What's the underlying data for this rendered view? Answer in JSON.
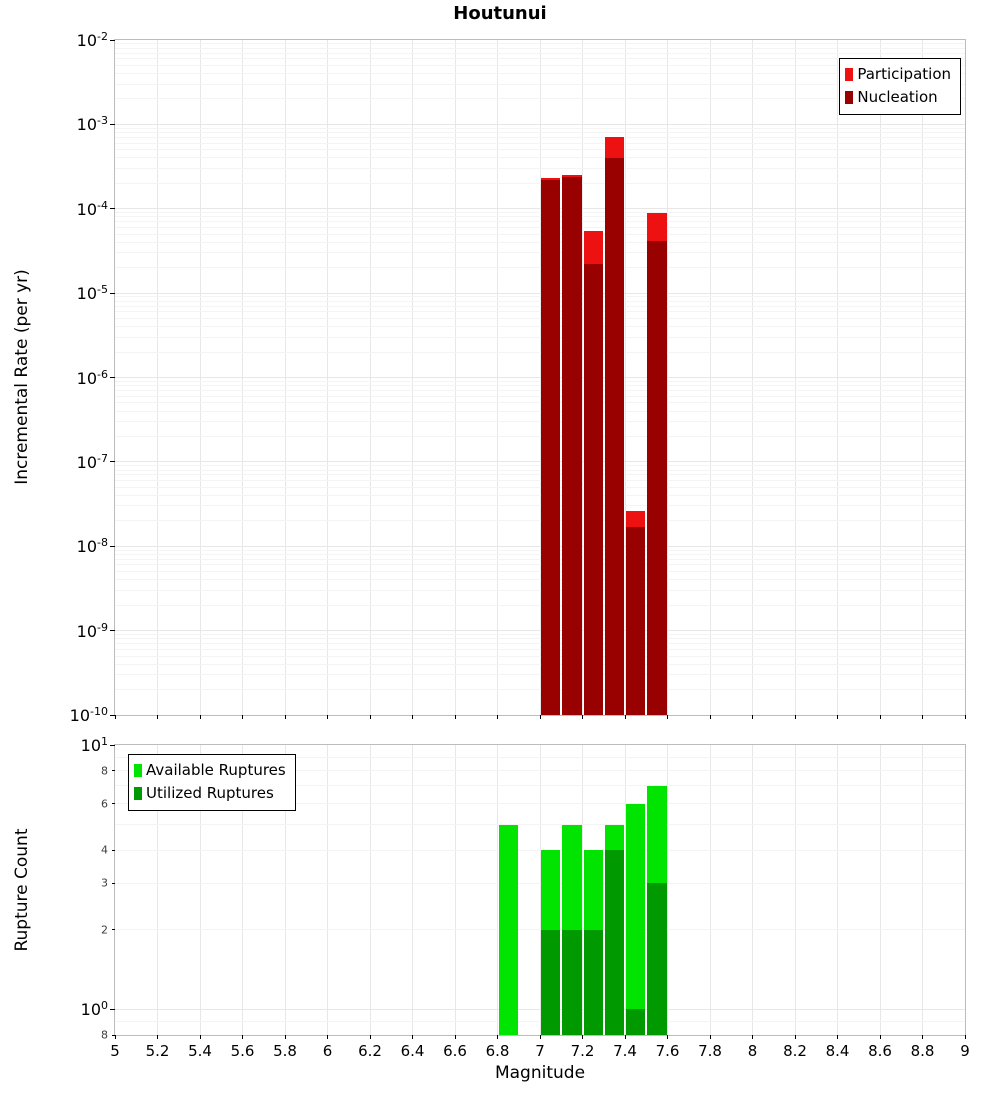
{
  "title": "Houtunui",
  "colors": {
    "participation": "#ee1111",
    "nucleation": "#990000",
    "available": "#00e400",
    "utilized": "#009900"
  },
  "x_axis": {
    "label": "Magnitude",
    "min": 5,
    "max": 9,
    "ticks": [
      "5",
      "5.2",
      "5.4",
      "5.6",
      "5.8",
      "6",
      "6.2",
      "6.4",
      "6.6",
      "6.8",
      "7",
      "7.2",
      "7.4",
      "7.6",
      "7.8",
      "8",
      "8.2",
      "8.4",
      "8.6",
      "8.8",
      "9"
    ]
  },
  "chart_data": [
    {
      "type": "bar",
      "title": "Houtunui",
      "ylabel": "Incremental Rate (per yr)",
      "xlabel": "Magnitude",
      "xlim": [
        5,
        9
      ],
      "yscale": "log",
      "ylim": [
        1e-10,
        0.01
      ],
      "y_tick_exponents": [
        -2,
        -3,
        -4,
        -5,
        -6,
        -7,
        -8,
        -9,
        -10
      ],
      "bin_width": 0.1,
      "grid": true,
      "legend_position": "top-right",
      "series": [
        {
          "name": "Participation",
          "color_key": "participation",
          "x": [
            7.05,
            7.15,
            7.25,
            7.35,
            7.45,
            7.55
          ],
          "values": [
            0.00023,
            0.00025,
            5.5e-05,
            0.0007,
            2.6e-08,
            8.8e-05
          ]
        },
        {
          "name": "Nucleation",
          "color_key": "nucleation",
          "x": [
            7.05,
            7.15,
            7.25,
            7.35,
            7.45,
            7.55
          ],
          "values": [
            0.00022,
            0.00024,
            2.2e-05,
            0.0004,
            1.7e-08,
            4.2e-05
          ]
        }
      ]
    },
    {
      "type": "bar",
      "ylabel": "Rupture Count",
      "xlabel": "Magnitude",
      "xlim": [
        5,
        9
      ],
      "yscale": "log",
      "ylim": [
        0.8,
        10
      ],
      "y_ticks": [
        {
          "v": 10,
          "exp": 1,
          "major": true
        },
        {
          "v": 8,
          "label": "8"
        },
        {
          "v": 6,
          "label": "6"
        },
        {
          "v": 4,
          "label": "4"
        },
        {
          "v": 3,
          "label": "3"
        },
        {
          "v": 2,
          "label": "2"
        },
        {
          "v": 1,
          "exp": 0,
          "major": true
        },
        {
          "v": 0.8,
          "label": "8"
        }
      ],
      "bin_width": 0.1,
      "grid": true,
      "legend_position": "top-left",
      "series": [
        {
          "name": "Available Ruptures",
          "color_key": "available",
          "x": [
            6.85,
            7.05,
            7.15,
            7.25,
            7.35,
            7.45,
            7.55
          ],
          "values": [
            5,
            4,
            5,
            4,
            5,
            6,
            7
          ]
        },
        {
          "name": "Utilized Ruptures",
          "color_key": "utilized",
          "x": [
            7.05,
            7.15,
            7.25,
            7.35,
            7.45,
            7.55
          ],
          "values": [
            2,
            2,
            2,
            4,
            1,
            3
          ]
        }
      ]
    }
  ]
}
